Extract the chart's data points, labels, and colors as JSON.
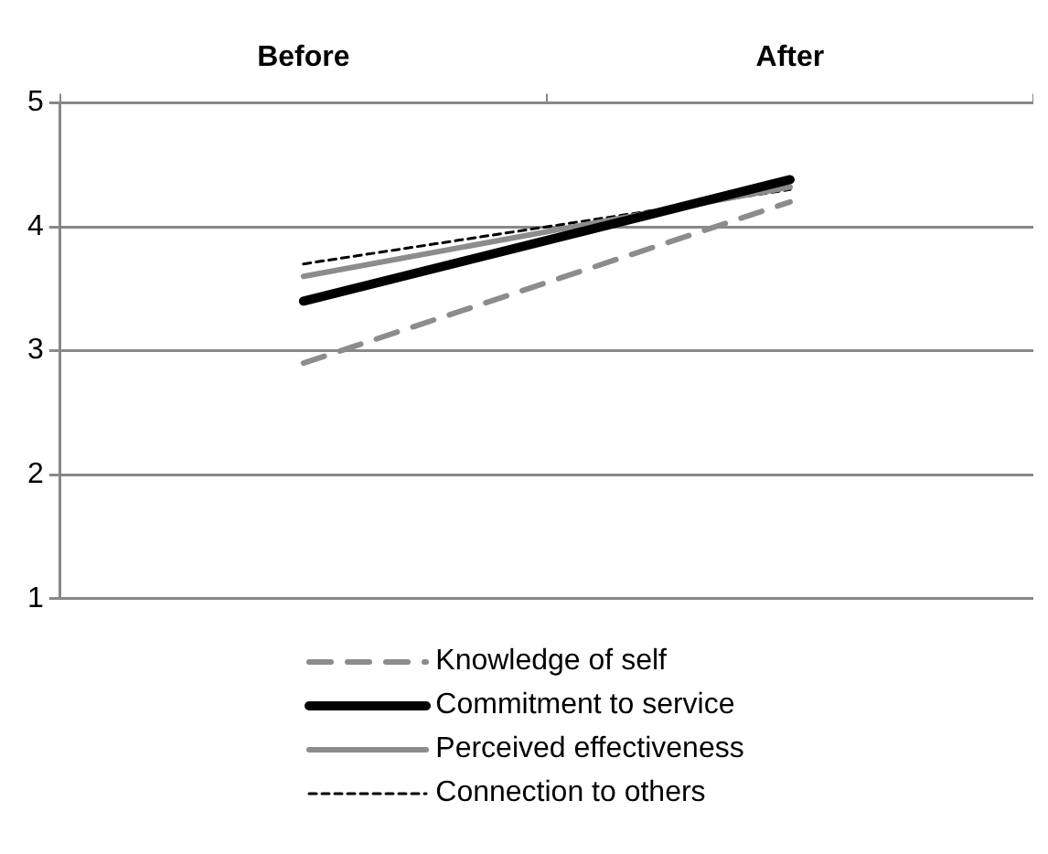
{
  "chart_data": {
    "type": "line",
    "categories": [
      "Before",
      "After"
    ],
    "series": [
      {
        "name": "Knowledge of self",
        "color": "#8c8c8c",
        "values": [
          2.9,
          4.2
        ],
        "line_style": "dashed"
      },
      {
        "name": "Commitment to service",
        "color": "#000000",
        "values": [
          3.4,
          4.38
        ],
        "line_style": "solid"
      },
      {
        "name": "Perceived effectiveness",
        "color": "#8c8c8c",
        "values": [
          3.6,
          4.32
        ],
        "line_style": "solid"
      },
      {
        "name": "Connection to others",
        "color": "#000000",
        "values": [
          3.7,
          4.3
        ],
        "line_style": "dotted"
      }
    ],
    "ylim": [
      1,
      5
    ],
    "yticks": [
      1,
      2,
      3,
      4,
      5
    ],
    "grid": "y",
    "legend": "bottom",
    "marker": "none"
  }
}
